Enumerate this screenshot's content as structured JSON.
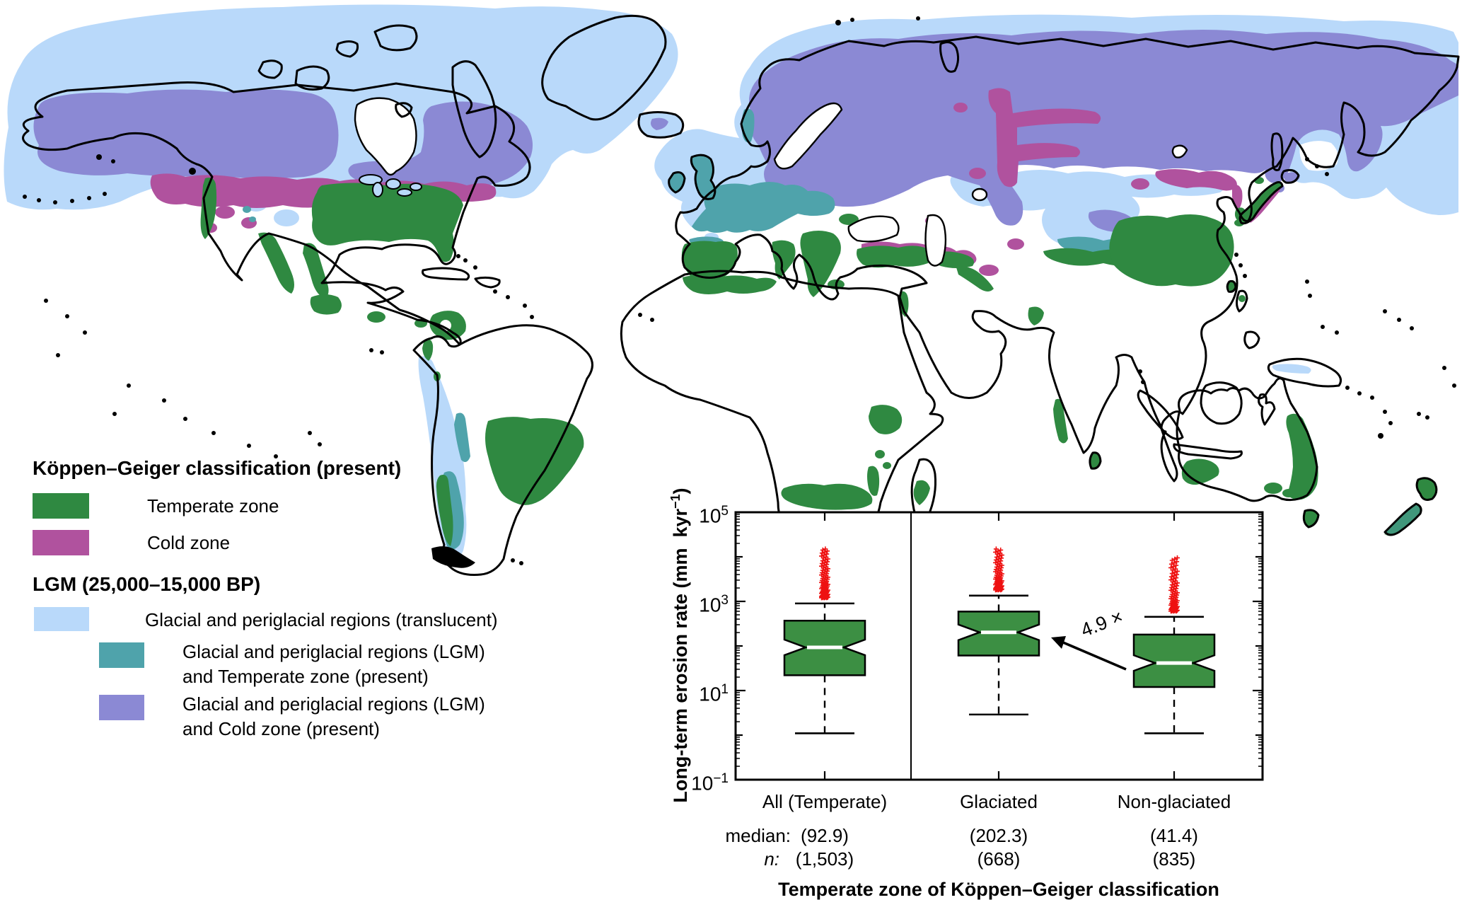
{
  "figure": {
    "type": "scientific map + boxplot figure",
    "background": "#ffffff"
  },
  "map": {
    "description": "World map of present Köppen–Geiger temperate and cold zones overlaid with LGM glacial and periglacial regions",
    "colors": {
      "temperate": "#2f8941",
      "cold": "#b0529e",
      "glacial": "#b9d9fa",
      "glacial_temperate": "#4fa3ab",
      "glacial_cold": "#8b89d4",
      "coastline": "#000000",
      "ocean": "#ffffff"
    }
  },
  "legend": {
    "section1_title": "Köppen–Geiger classification (present)",
    "section2_title": "LGM (25,000–15,000 BP)",
    "items": [
      {
        "label": "Temperate zone",
        "color": "#2f8941"
      },
      {
        "label": "Cold zone",
        "color": "#b0529e"
      },
      {
        "label": "Glacial and periglacial regions (translucent)",
        "color": "#b9d9fa"
      },
      {
        "label_line1": "Glacial and periglacial regions (LGM)",
        "label_line2": "and Temperate zone (present)",
        "color": "#4fa3ab"
      },
      {
        "label_line1": "Glacial and periglacial regions (LGM)",
        "label_line2": "and Cold zone (present)",
        "color": "#8b89d4"
      }
    ]
  },
  "chart_data": {
    "type": "boxplot",
    "y_scale": "log10",
    "ylim": [
      0.1,
      100000
    ],
    "yticks": [
      {
        "base": "10",
        "exp": "5"
      },
      {
        "base": "10",
        "exp": "3"
      },
      {
        "base": "10",
        "exp": "1"
      },
      {
        "base": "10",
        "exp": "−1"
      }
    ],
    "ytick_exponents": [
      5,
      3,
      1,
      -1
    ],
    "ylabel_pre": "Long-term erosion rate (mm  kyr",
    "ylabel_sup": "−1",
    "ylabel_post": ")",
    "xlabel": "Temperate zone of Köppen–Geiger classification",
    "categories": [
      "All (Temperate)",
      "Glaciated",
      "Non-glaciated"
    ],
    "median_row_label": "median:",
    "n_row_label": "n:",
    "series": [
      {
        "name": "All (Temperate)",
        "whisker_low": 1.1,
        "q1": 22,
        "median": 92.9,
        "q3": 370,
        "whisker_high": 900,
        "outlier_max": 15000,
        "median_label": "(92.9)",
        "n_label": "(1,503)",
        "n": 1503
      },
      {
        "name": "Glaciated",
        "whisker_low": 2.9,
        "q1": 61,
        "median": 202.3,
        "q3": 590,
        "whisker_high": 1350,
        "outlier_max": 15000,
        "median_label": "(202.3)",
        "n_label": "(668)",
        "n": 668
      },
      {
        "name": "Non-glaciated",
        "whisker_low": 1.1,
        "q1": 12,
        "median": 41.4,
        "q3": 180,
        "whisker_high": 450,
        "outlier_max": 9500,
        "median_label": "(41.4)",
        "n_label": "(835)",
        "n": 835
      }
    ],
    "annotation": {
      "text": "4.9 ×",
      "arrow_from": "Non-glaciated",
      "arrow_to": "Glaciated"
    },
    "box_color": "#3c8f43",
    "median_line_color": "#ffffff",
    "outlier_color": "#ee1111",
    "outlier_marker": "+",
    "frame_color": "#000000",
    "legend_position": "none",
    "grid": false
  }
}
